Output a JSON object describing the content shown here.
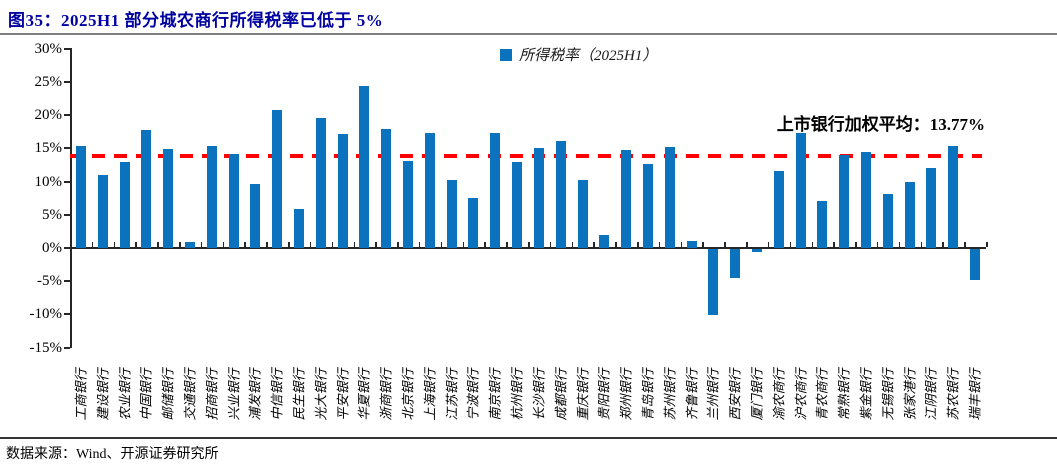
{
  "figure": {
    "title": "图35：2025H1 部分城农商行所得税率已低于 5%",
    "source": "数据来源：Wind、开源证券研究所"
  },
  "colors": {
    "bar": "#0B72BE",
    "reference_line": "#FE0000",
    "title": "#0000A0"
  },
  "chart_data": {
    "type": "bar",
    "legend": [
      "所得税率（2025H1）"
    ],
    "legend_position": "top-center",
    "grid": false,
    "ylim": [
      -15,
      30
    ],
    "ytick_values": [
      30,
      25,
      20,
      15,
      10,
      5,
      0,
      -5,
      -10,
      -15
    ],
    "ytick_labels": [
      "30%",
      "25%",
      "20%",
      "15%",
      "10%",
      "5%",
      "0%",
      "-5%",
      "-10%",
      "-15%"
    ],
    "reference_line": {
      "label": "上市银行加权平均：13.77%",
      "value": 13.77
    },
    "categories": [
      "工商银行",
      "建设银行",
      "农业银行",
      "中国银行",
      "邮储银行",
      "交通银行",
      "招商银行",
      "兴业银行",
      "浦发银行",
      "中信银行",
      "民生银行",
      "光大银行",
      "平安银行",
      "华夏银行",
      "浙商银行",
      "北京银行",
      "上海银行",
      "江苏银行",
      "宁波银行",
      "南京银行",
      "杭州银行",
      "长沙银行",
      "成都银行",
      "重庆银行",
      "贵阳银行",
      "郑州银行",
      "青岛银行",
      "苏州银行",
      "齐鲁银行",
      "兰州银行",
      "西安银行",
      "厦门银行",
      "渝农商行",
      "沪农商行",
      "青农商行",
      "常熟银行",
      "紫金银行",
      "无锡银行",
      "张家港行",
      "江阴银行",
      "苏农银行",
      "瑞丰银行"
    ],
    "values": [
      15.4,
      11.0,
      13.0,
      17.8,
      14.9,
      0.9,
      15.4,
      14.2,
      9.7,
      20.7,
      5.8,
      19.5,
      17.1,
      24.4,
      17.9,
      13.1,
      17.3,
      10.2,
      7.5,
      17.3,
      12.9,
      15.0,
      16.1,
      10.3,
      2.0,
      14.8,
      12.7,
      15.2,
      1.0,
      -9.9,
      -4.3,
      -0.4,
      11.6,
      17.3,
      7.1,
      14.0,
      14.4,
      8.2,
      9.9,
      12.0,
      15.4,
      -4.7
    ]
  }
}
